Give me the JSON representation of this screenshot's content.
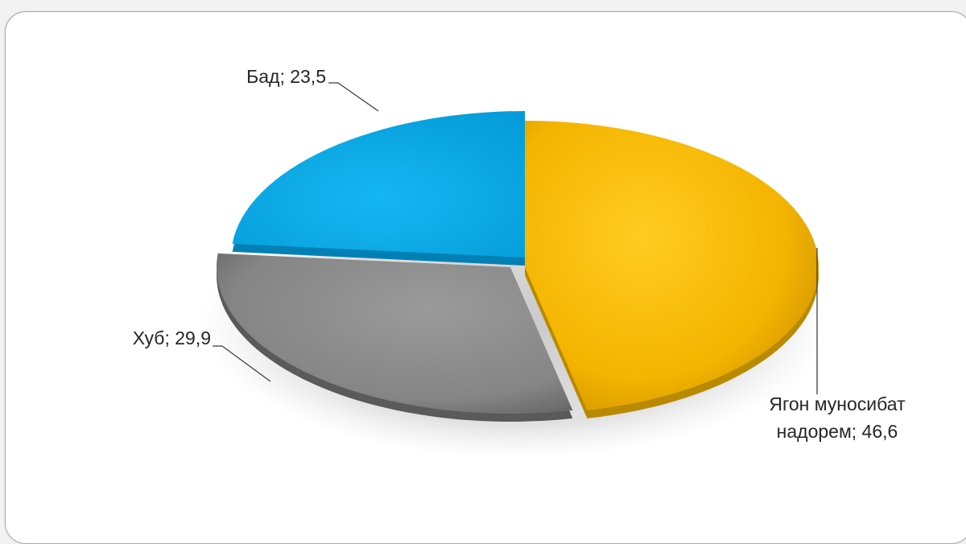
{
  "chart_data": {
    "type": "pie",
    "title": "",
    "slices": [
      {
        "name": "Ягон муносибат надорем",
        "value": 46.6,
        "color": "#f5b800",
        "label_lines": [
          "Ягон муносибат",
          "надорем; 46,6"
        ]
      },
      {
        "name": "Хуб",
        "value": 29.9,
        "color": "#8c8c8c",
        "label_lines": [
          "Хуб; 29,9"
        ]
      },
      {
        "name": "Бад",
        "value": 23.5,
        "color": "#03a9e9",
        "label_lines": [
          "Бад; 23,5"
        ]
      }
    ],
    "legend": "none",
    "style": "3d-exploded"
  }
}
